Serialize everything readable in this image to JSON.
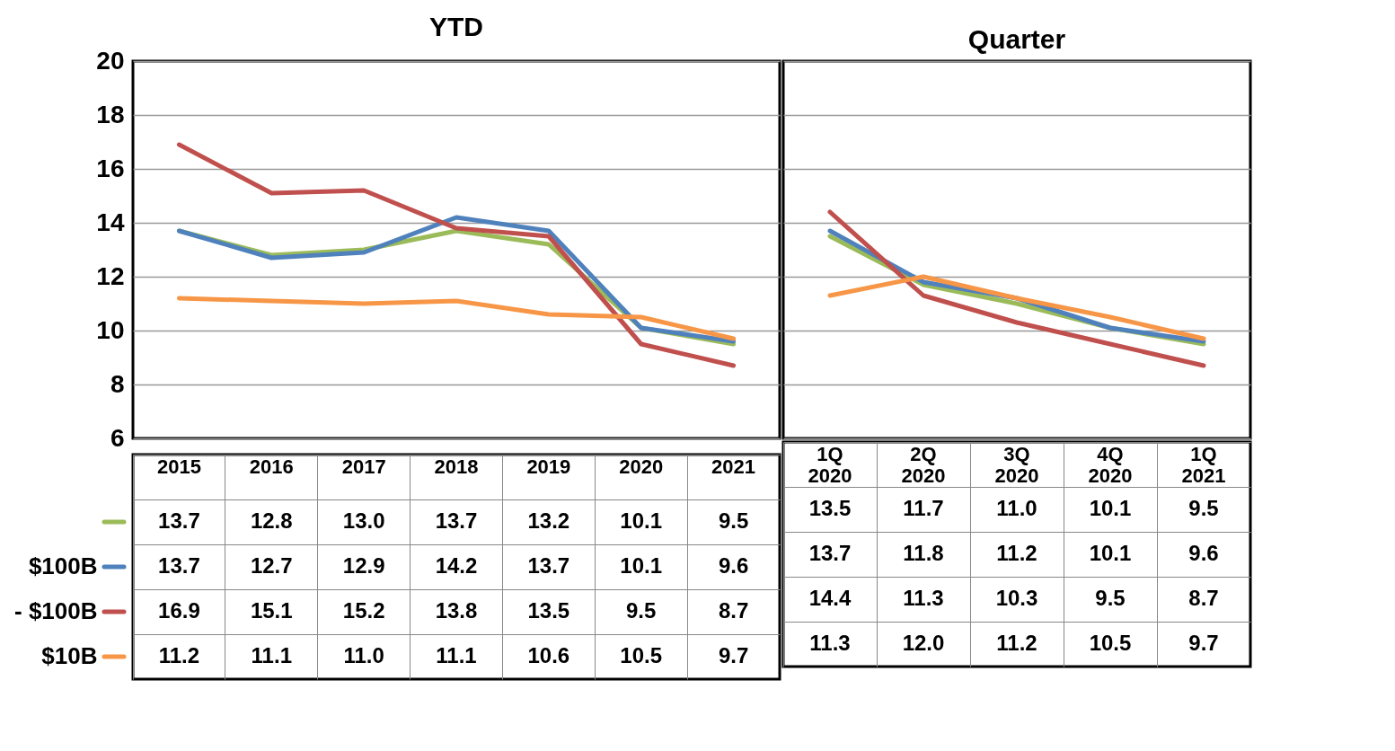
{
  "chart_data": [
    {
      "type": "line",
      "title": "YTD",
      "categories": [
        "2015",
        "2016",
        "2017",
        "2018",
        "2019",
        "2020",
        "2021"
      ],
      "series": [
        {
          "name": null,
          "color": "#9bbb59",
          "values": [
            13.7,
            12.8,
            13.0,
            13.7,
            13.2,
            10.1,
            9.5
          ],
          "value_labels": [
            "13.7",
            "12.8",
            "13.0",
            "13.7",
            "13.2",
            "10.1",
            "9.5"
          ]
        },
        {
          "name": "$100B",
          "color": "#4f81bd",
          "values": [
            13.7,
            12.7,
            12.9,
            14.2,
            13.7,
            10.1,
            9.6
          ],
          "value_labels": [
            "13.7",
            "12.7",
            "12.9",
            "14.2",
            "13.7",
            "10.1",
            "9.6"
          ]
        },
        {
          "name": "- $100B",
          "color": "#c0504d",
          "values": [
            16.9,
            15.1,
            15.2,
            13.8,
            13.5,
            9.5,
            8.7
          ],
          "value_labels": [
            "16.9",
            "15.1",
            "15.2",
            "13.8",
            "13.5",
            "9.5",
            "8.7"
          ]
        },
        {
          "name": "$10B",
          "color": "#f79646",
          "values": [
            11.2,
            11.1,
            11.0,
            11.1,
            10.6,
            10.5,
            9.7
          ],
          "value_labels": [
            "11.2",
            "11.1",
            "11.0",
            "11.1",
            "10.6",
            "10.5",
            "9.7"
          ]
        }
      ],
      "ylim": [
        6,
        20
      ],
      "yticks": [
        6,
        8,
        10,
        12,
        14,
        16,
        18,
        20
      ],
      "grid": "y",
      "legend": "left"
    },
    {
      "type": "line",
      "title": "Quarter",
      "categories": [
        "1Q 2020",
        "2Q 2020",
        "3Q 2020",
        "4Q 2020",
        "1Q 2021"
      ],
      "series": [
        {
          "color": "#9bbb59",
          "values": [
            13.5,
            11.7,
            11.0,
            10.1,
            9.5
          ],
          "value_labels": [
            "13.5",
            "11.7",
            "11.0",
            "10.1",
            "9.5"
          ]
        },
        {
          "color": "#4f81bd",
          "values": [
            13.7,
            11.8,
            11.2,
            10.1,
            9.6
          ],
          "value_labels": [
            "13.7",
            "11.8",
            "11.2",
            "10.1",
            "9.6"
          ]
        },
        {
          "color": "#c0504d",
          "values": [
            14.4,
            11.3,
            10.3,
            9.5,
            8.7
          ],
          "value_labels": [
            "14.4",
            "11.3",
            "10.3",
            "9.5",
            "8.7"
          ]
        },
        {
          "color": "#f79646",
          "values": [
            11.3,
            12.0,
            11.2,
            10.5,
            9.7
          ],
          "value_labels": [
            "11.3",
            "12.0",
            "11.2",
            "10.5",
            "9.7"
          ]
        }
      ],
      "ylim": [
        6,
        20
      ],
      "yticks": [
        6,
        8,
        10,
        12,
        14,
        16,
        18,
        20
      ],
      "grid": "y",
      "tick_labels": "x"
    }
  ]
}
